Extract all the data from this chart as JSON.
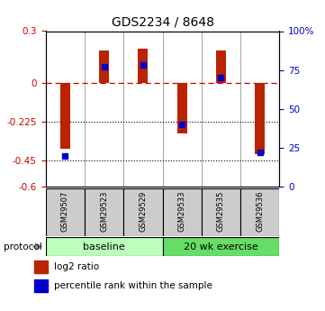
{
  "title": "GDS2234 / 8648",
  "samples": [
    "GSM29507",
    "GSM29523",
    "GSM29529",
    "GSM29533",
    "GSM29535",
    "GSM29536"
  ],
  "log2_ratio": [
    -0.38,
    0.19,
    0.2,
    -0.29,
    0.19,
    -0.41
  ],
  "percentile_rank": [
    20,
    77,
    78,
    40,
    70,
    22
  ],
  "ylim_left": [
    -0.6,
    0.3
  ],
  "ylim_right": [
    0,
    100
  ],
  "yticks_left": [
    -0.6,
    -0.45,
    -0.225,
    0,
    0.3
  ],
  "ytick_labels_left": [
    "-0.6",
    "-0.45",
    "-0.225",
    "0",
    "0.3"
  ],
  "yticks_right": [
    0,
    25,
    50,
    75,
    100
  ],
  "ytick_labels_right": [
    "0",
    "25",
    "50",
    "75",
    "100%"
  ],
  "hline_y": 0,
  "dotted_lines": [
    -0.225,
    -0.45
  ],
  "bar_color": "#bb2200",
  "point_color": "#0000cc",
  "bar_width": 0.25,
  "legend_items": [
    {
      "label": "log2 ratio",
      "color": "#bb2200"
    },
    {
      "label": "percentile rank within the sample",
      "color": "#0000cc"
    }
  ],
  "group_baseline_color": "#bbffbb",
  "group_exercise_color": "#66dd66",
  "sample_box_color": "#cccccc",
  "fig_width": 3.61,
  "fig_height": 3.45,
  "dpi": 100
}
